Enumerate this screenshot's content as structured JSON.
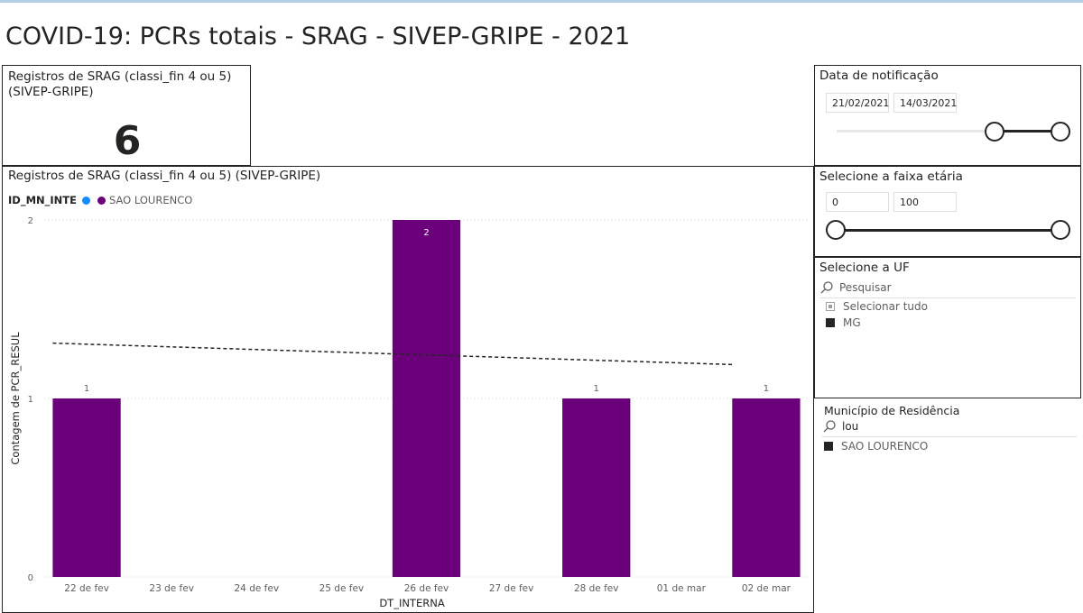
{
  "page": {
    "title": "COVID-19: PCRs totais - SRAG - SIVEP-GRIPE - 2021"
  },
  "kpi": {
    "title": "Registros de SRAG (classi_fin 4 ou 5) (SIVEP-GRIPE)",
    "value": "6"
  },
  "chart": {
    "title": "Registros de SRAG (classi_fin 4 ou 5) (SIVEP-GRIPE)",
    "legend_title": "ID_MN_INTE",
    "legend_items": [
      {
        "label": "",
        "color": "#118DFF"
      },
      {
        "label": "SAO LOURENCO",
        "color": "#6B007B"
      }
    ]
  },
  "chart_data": {
    "type": "bar",
    "categories": [
      "22 de fev",
      "23 de fev",
      "24 de fev",
      "25 de fev",
      "26 de fev",
      "27 de fev",
      "28 de fev",
      "01 de mar",
      "02 de mar"
    ],
    "series": [
      {
        "name": "SAO LOURENCO",
        "color": "#6B007B",
        "values": [
          1,
          null,
          null,
          null,
          2,
          null,
          1,
          null,
          1
        ]
      }
    ],
    "data_labels": [
      "1",
      "",
      "",
      "",
      "2",
      "",
      "1",
      "",
      "1"
    ],
    "trend_line": {
      "start": 1.31,
      "end": 1.19,
      "style": "dashed"
    },
    "xlabel": "DT_INTERNA",
    "ylabel": "Contagem de PCR_RESUL",
    "ylim": [
      0,
      2
    ],
    "yticks": [
      "0",
      "1",
      "2"
    ],
    "grid": true
  },
  "date_slicer": {
    "title": "Data de notificação",
    "start": "21/02/2021",
    "end": "14/03/2021",
    "range_fraction": [
      0.88,
      1.0
    ]
  },
  "age_slicer": {
    "title": "Selecione a faixa etária",
    "min": "0",
    "max": "100",
    "range_fraction": [
      0.0,
      1.0
    ]
  },
  "uf_slicer": {
    "title": "Selecione a UF",
    "search_placeholder": "Pesquisar",
    "select_all": "Selecionar tudo",
    "items": [
      {
        "label": "MG",
        "checked": true
      }
    ]
  },
  "municipio_slicer": {
    "title": "Município de Residência",
    "search_value": "lou",
    "items": [
      {
        "label": "SAO LOURENCO",
        "checked": true
      }
    ]
  },
  "colors": {
    "bar": "#6B007B",
    "accent_blue": "#118DFF",
    "text": "#252423"
  },
  "icons": [
    "search-icon"
  ]
}
